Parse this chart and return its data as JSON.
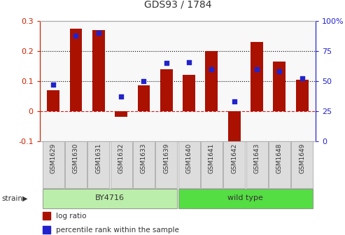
{
  "title": "GDS93 / 1784",
  "samples": [
    "GSM1629",
    "GSM1630",
    "GSM1631",
    "GSM1632",
    "GSM1633",
    "GSM1639",
    "GSM1640",
    "GSM1641",
    "GSM1642",
    "GSM1643",
    "GSM1648",
    "GSM1649"
  ],
  "log_ratio": [
    0.07,
    0.275,
    0.27,
    -0.02,
    0.085,
    0.14,
    0.12,
    0.2,
    -0.13,
    0.23,
    0.165,
    0.105
  ],
  "percentile": [
    47,
    88,
    90,
    37,
    50,
    65,
    66,
    60,
    33,
    60,
    58,
    52
  ],
  "strain_groups": [
    {
      "label": "BY4716",
      "start": 0,
      "end": 5,
      "color": "#bbeeaa"
    },
    {
      "label": "wild type",
      "start": 6,
      "end": 11,
      "color": "#55dd44"
    }
  ],
  "bar_color": "#aa1100",
  "dot_color": "#2222cc",
  "bar_width": 0.55,
  "ylim_left": [
    -0.1,
    0.3
  ],
  "ylim_right": [
    0,
    100
  ],
  "yticks_left": [
    -0.1,
    0.0,
    0.1,
    0.2,
    0.3
  ],
  "yticks_right": [
    0,
    25,
    50,
    75,
    100
  ],
  "left_tick_labels": [
    "-0.1",
    "0",
    "0.1",
    "0.2",
    "0.3"
  ],
  "right_tick_labels": [
    "0",
    "25",
    "50",
    "75",
    "100%"
  ],
  "hlines": [
    0.1,
    0.2
  ],
  "zero_line_color": "#cc2222",
  "left_axis_color": "#cc2200",
  "right_axis_color": "#2222cc",
  "plot_bg": "#f8f8f8",
  "legend_items": [
    {
      "label": "log ratio",
      "color": "#aa1100"
    },
    {
      "label": "percentile rank within the sample",
      "color": "#2222cc"
    }
  ]
}
